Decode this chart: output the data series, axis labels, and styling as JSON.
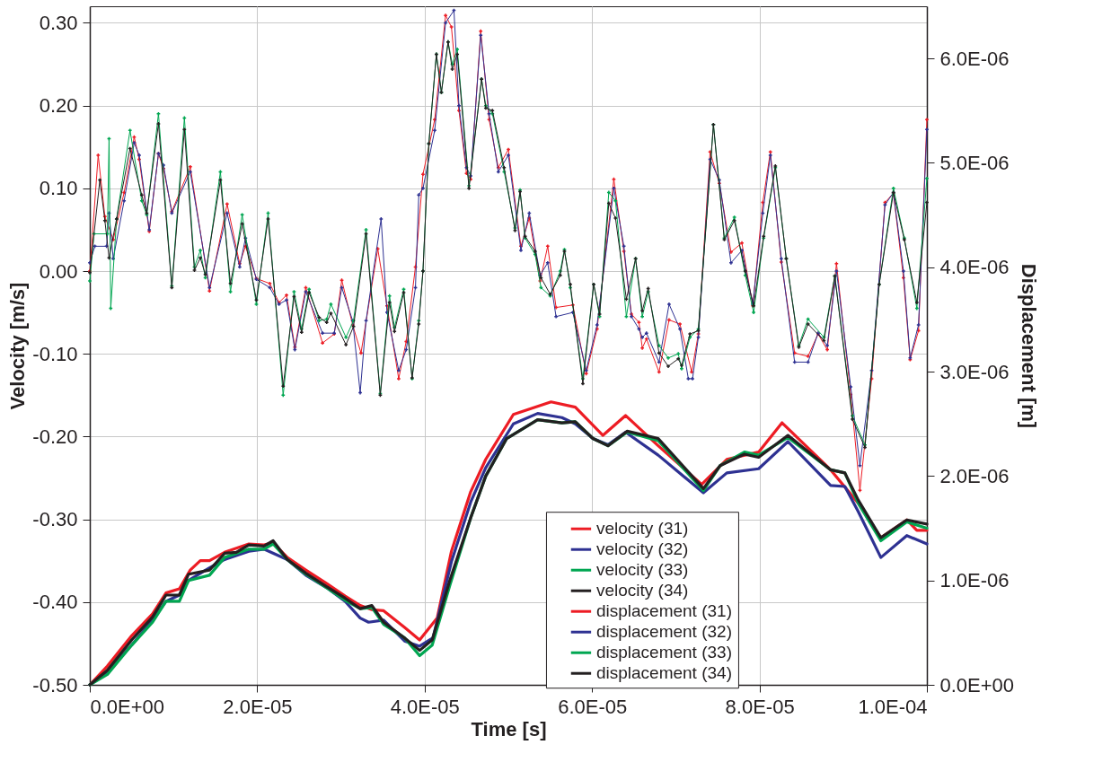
{
  "chart_data": {
    "type": "line",
    "xlabel": "Time  [s]",
    "ylabel": "Velocity  [m/s]",
    "y2label": "Displacement [m]",
    "xlim": [
      0,
      0.0001
    ],
    "ylim": [
      -0.5,
      0.32
    ],
    "y2lim": [
      0,
      6.5e-06
    ],
    "xticks": [
      {
        "value": 0,
        "label": "0.0E+00"
      },
      {
        "value": 2e-05,
        "label": "2.0E-05"
      },
      {
        "value": 4e-05,
        "label": "4.0E-05"
      },
      {
        "value": 6e-05,
        "label": "6.0E-05"
      },
      {
        "value": 8e-05,
        "label": "8.0E-05"
      },
      {
        "value": 0.0001,
        "label": "1.0E-04"
      }
    ],
    "yticks": [
      {
        "value": -0.5,
        "label": "-0.50"
      },
      {
        "value": -0.4,
        "label": "-0.40"
      },
      {
        "value": -0.3,
        "label": "-0.30"
      },
      {
        "value": -0.2,
        "label": "-0.20"
      },
      {
        "value": -0.1,
        "label": "-0.10"
      },
      {
        "value": 0,
        "label": "0.00"
      },
      {
        "value": 0.1,
        "label": "0.10"
      },
      {
        "value": 0.2,
        "label": "0.20"
      },
      {
        "value": 0.3,
        "label": "0.30"
      }
    ],
    "y2ticks": [
      {
        "value": 0,
        "label": "0.0E+00"
      },
      {
        "value": 1e-06,
        "label": "1.0E-06"
      },
      {
        "value": 2e-06,
        "label": "2.0E-06"
      },
      {
        "value": 3e-06,
        "label": "3.0E-06"
      },
      {
        "value": 4e-06,
        "label": "4.0E-06"
      },
      {
        "value": 5e-06,
        "label": "5.0E-06"
      },
      {
        "value": 6e-06,
        "label": "6.0E-06"
      }
    ],
    "grid": true,
    "legend": "bottom right",
    "marker": "cross",
    "series": [
      {
        "name": "velocity (31)",
        "color": "#ed1c24",
        "x": [
          0,
          1e-06,
          1.8e-06,
          2.8e-06,
          4.1e-06,
          5.3e-06,
          5.9e-06,
          7.1e-06,
          8.2e-06,
          8.8e-06,
          9.8e-06,
          1.2e-05,
          1.43e-05,
          1.64e-05,
          1.79e-05,
          1.86e-05,
          1.99e-05,
          2.15e-05,
          2.26e-05,
          2.35e-05,
          2.45e-05,
          2.58e-05,
          2.78e-05,
          2.92e-05,
          3.01e-05,
          3.14e-05,
          3.24e-05,
          3.44e-05,
          3.55e-05,
          3.69e-05,
          3.78e-05,
          3.89e-05,
          3.98e-05,
          4.12e-05,
          4.25e-05,
          4.32e-05,
          4.41e-05,
          4.5e-05,
          4.55e-05,
          4.67e-05,
          4.77e-05,
          4.88e-05,
          5e-05,
          5.15e-05,
          5.25e-05,
          5.38e-05,
          5.47e-05,
          5.57e-05,
          5.77e-05,
          5.93e-05,
          6.06e-05,
          6.26e-05,
          6.38e-05,
          6.47e-05,
          6.56e-05,
          6.6e-05,
          6.65e-05,
          6.8e-05,
          6.92e-05,
          7.05e-05,
          7.19e-05,
          7.27e-05,
          7.41e-05,
          7.52e-05,
          7.66e-05,
          7.79e-05,
          7.92e-05,
          8.04e-05,
          8.13e-05,
          8.26e-05,
          8.42e-05,
          8.58e-05,
          8.7e-05,
          8.81e-05,
          8.92e-05,
          9.09e-05,
          9.2e-05,
          9.34e-05,
          9.5e-05,
          9.6e-05,
          9.72e-05,
          9.8e-05,
          9.9e-05,
          0.0001
        ],
        "values": [
          0,
          0.14,
          0.066,
          0.038,
          0.095,
          0.162,
          0.135,
          0.048,
          0.142,
          0.124,
          0.072,
          0.126,
          -0.024,
          0.081,
          0.009,
          0.03,
          -0.009,
          -0.015,
          -0.038,
          -0.029,
          -0.092,
          -0.02,
          -0.087,
          -0.076,
          -0.011,
          -0.065,
          -0.099,
          0.027,
          -0.042,
          -0.13,
          -0.085,
          0.005,
          0.117,
          0.183,
          0.309,
          0.295,
          0.194,
          0.118,
          0.111,
          0.29,
          0.183,
          0.125,
          0.147,
          0.03,
          0.064,
          -0.012,
          0.03,
          -0.044,
          -0.041,
          -0.124,
          -0.07,
          0.111,
          0.024,
          -0.052,
          -0.062,
          -0.093,
          -0.082,
          -0.122,
          -0.059,
          -0.064,
          -0.122,
          -0.076,
          0.144,
          0.106,
          0.023,
          0.034,
          -0.042,
          0.083,
          0.144,
          0.011,
          -0.099,
          -0.103,
          -0.076,
          -0.095,
          0.009,
          -0.149,
          -0.265,
          -0.13,
          0.083,
          0.094,
          -0.008,
          -0.107,
          -0.072,
          0.183
        ]
      },
      {
        "name": "velocity (32)",
        "color": "#2e3192",
        "x": [
          0,
          6e-07,
          2e-06,
          2.3e-06,
          2.8e-06,
          4.1e-06,
          5.3e-06,
          5.9e-06,
          7.1e-06,
          8.2e-06,
          8.8e-06,
          9.8e-06,
          1.2e-05,
          1.43e-05,
          1.64e-05,
          1.79e-05,
          1.86e-05,
          1.99e-05,
          2.15e-05,
          2.26e-05,
          2.35e-05,
          2.45e-05,
          2.58e-05,
          2.78e-05,
          2.92e-05,
          3.01e-05,
          3.14e-05,
          3.23e-05,
          3.3e-05,
          3.48e-05,
          3.55e-05,
          3.69e-05,
          3.78e-05,
          3.89e-05,
          3.93e-05,
          3.98e-05,
          4.12e-05,
          4.25e-05,
          4.35e-05,
          4.41e-05,
          4.5e-05,
          4.55e-05,
          4.67e-05,
          4.77e-05,
          4.88e-05,
          5e-05,
          5.15e-05,
          5.25e-05,
          5.38e-05,
          5.47e-05,
          5.57e-05,
          5.77e-05,
          5.93e-05,
          6.06e-05,
          6.26e-05,
          6.38e-05,
          6.47e-05,
          6.56e-05,
          6.6e-05,
          6.65e-05,
          6.8e-05,
          6.92e-05,
          7.05e-05,
          7.15e-05,
          7.2e-05,
          7.27e-05,
          7.41e-05,
          7.52e-05,
          7.66e-05,
          7.79e-05,
          7.92e-05,
          8.04e-05,
          8.13e-05,
          8.26e-05,
          8.42e-05,
          8.58e-05,
          8.7e-05,
          8.81e-05,
          8.92e-05,
          9.09e-05,
          9.2e-05,
          9.34e-05,
          9.5e-05,
          9.6e-05,
          9.72e-05,
          9.8e-05,
          9.9e-05,
          0.0001
        ],
        "values": [
          0.01,
          0.03,
          0.03,
          0.07,
          0.015,
          0.085,
          0.155,
          0.14,
          0.05,
          0.142,
          0.128,
          0.07,
          0.12,
          -0.02,
          0.07,
          0.005,
          0.04,
          -0.01,
          -0.02,
          -0.04,
          -0.035,
          -0.095,
          -0.025,
          -0.075,
          -0.075,
          -0.02,
          -0.06,
          -0.147,
          -0.06,
          0.063,
          -0.05,
          -0.12,
          -0.095,
          -0.02,
          0.092,
          0.1,
          0.17,
          0.3,
          0.315,
          0.2,
          0.125,
          0.115,
          0.285,
          0.19,
          0.12,
          0.14,
          0.025,
          0.07,
          -0.005,
          0.01,
          -0.055,
          -0.05,
          -0.12,
          -0.065,
          0.1,
          0.03,
          -0.055,
          -0.07,
          -0.08,
          -0.075,
          -0.11,
          -0.04,
          -0.07,
          -0.13,
          -0.13,
          -0.08,
          0.135,
          0.11,
          0.01,
          0.025,
          -0.04,
          0.07,
          0.14,
          0.015,
          -0.11,
          -0.11,
          -0.075,
          -0.09,
          0,
          -0.14,
          -0.235,
          -0.12,
          0.08,
          0.095,
          0,
          -0.105,
          -0.065,
          0.171
        ]
      },
      {
        "name": "velocity (33)",
        "color": "#00a651",
        "x": [
          0,
          5e-07,
          2.1e-06,
          2.3e-06,
          2.5e-06,
          3.2e-06,
          4.8e-06,
          6.2e-06,
          6.8e-06,
          8.2e-06,
          9.8e-06,
          1.13e-05,
          1.25e-05,
          1.32e-05,
          1.38e-05,
          1.56e-05,
          1.68e-05,
          1.82e-05,
          1.99e-05,
          2.13e-05,
          2.31e-05,
          2.44e-05,
          2.53e-05,
          2.62e-05,
          2.74e-05,
          2.83e-05,
          2.88e-05,
          3.06e-05,
          3.15e-05,
          3.3e-05,
          3.47e-05,
          3.58e-05,
          3.64e-05,
          3.75e-05,
          3.85e-05,
          3.93e-05,
          3.98e-05,
          4.05e-05,
          4.14e-05,
          4.2e-05,
          4.28e-05,
          4.33e-05,
          4.39e-05,
          4.53e-05,
          4.68e-05,
          4.73e-05,
          4.81e-05,
          4.95e-05,
          5.08e-05,
          5.14e-05,
          5.2e-05,
          5.32e-05,
          5.39e-05,
          5.5e-05,
          5.62e-05,
          5.67e-05,
          5.74e-05,
          5.89e-05,
          6.02e-05,
          6.09e-05,
          6.2e-05,
          6.28e-05,
          6.41e-05,
          6.52e-05,
          6.6e-05,
          6.67e-05,
          6.8e-05,
          6.91e-05,
          7.03e-05,
          7.07e-05,
          7.17e-05,
          7.27e-05,
          7.45e-05,
          7.58e-05,
          7.7e-05,
          7.83e-05,
          7.93e-05,
          8.05e-05,
          8.19e-05,
          8.32e-05,
          8.47e-05,
          8.58e-05,
          8.77e-05,
          8.9e-05,
          9.11e-05,
          9.26e-05,
          9.43e-05,
          9.6e-05,
          9.73e-05,
          9.88e-05,
          0.0001
        ],
        "values": [
          -0.012,
          0.045,
          0.045,
          0.16,
          -0.045,
          0.063,
          0.17,
          0.085,
          0.068,
          0.19,
          -0.018,
          0.185,
          0.005,
          0.025,
          -0.008,
          0.12,
          -0.025,
          0.068,
          -0.04,
          0.07,
          -0.15,
          -0.025,
          -0.07,
          -0.022,
          -0.06,
          -0.058,
          -0.04,
          -0.08,
          -0.06,
          0.05,
          -0.148,
          -0.03,
          -0.068,
          -0.022,
          -0.13,
          -0.06,
          0,
          0.154,
          0.262,
          0.216,
          0.277,
          0.25,
          0.268,
          0.103,
          0.232,
          0.2,
          0.19,
          0.12,
          0.052,
          0.098,
          0.04,
          0.02,
          -0.02,
          -0.03,
          0,
          0.026,
          -0.02,
          -0.13,
          -0.016,
          -0.055,
          0.095,
          0.085,
          -0.055,
          0.015,
          -0.055,
          -0.025,
          -0.09,
          -0.105,
          -0.1,
          -0.118,
          -0.08,
          -0.07,
          0.177,
          0.04,
          0.065,
          -0.005,
          -0.05,
          0.04,
          0.125,
          0.015,
          -0.09,
          -0.058,
          -0.08,
          -0.006,
          -0.175,
          -0.21,
          -0.016,
          0.1,
          0.04,
          -0.045,
          0.112
        ]
      },
      {
        "name": "velocity (34)",
        "color": "#231f20",
        "x": [
          0,
          1.2e-06,
          1.8e-06,
          2.3e-06,
          3.2e-06,
          4.8e-06,
          6.2e-06,
          6.8e-06,
          8.2e-06,
          9.8e-06,
          1.13e-05,
          1.25e-05,
          1.32e-05,
          1.38e-05,
          1.56e-05,
          1.68e-05,
          1.82e-05,
          1.99e-05,
          2.13e-05,
          2.31e-05,
          2.44e-05,
          2.53e-05,
          2.62e-05,
          2.74e-05,
          2.83e-05,
          2.88e-05,
          3.06e-05,
          3.15e-05,
          3.3e-05,
          3.47e-05,
          3.58e-05,
          3.64e-05,
          3.75e-05,
          3.85e-05,
          3.93e-05,
          3.98e-05,
          4.05e-05,
          4.14e-05,
          4.2e-05,
          4.28e-05,
          4.33e-05,
          4.39e-05,
          4.53e-05,
          4.68e-05,
          4.73e-05,
          4.81e-05,
          4.95e-05,
          5.08e-05,
          5.14e-05,
          5.2e-05,
          5.32e-05,
          5.39e-05,
          5.5e-05,
          5.62e-05,
          5.67e-05,
          5.74e-05,
          5.89e-05,
          6.02e-05,
          6.09e-05,
          6.2e-05,
          6.28e-05,
          6.41e-05,
          6.52e-05,
          6.6e-05,
          6.67e-05,
          6.8e-05,
          6.91e-05,
          7.03e-05,
          7.07e-05,
          7.17e-05,
          7.27e-05,
          7.45e-05,
          7.58e-05,
          7.7e-05,
          7.83e-05,
          7.93e-05,
          8.05e-05,
          8.19e-05,
          8.32e-05,
          8.47e-05,
          8.58e-05,
          8.77e-05,
          8.9e-05,
          9.11e-05,
          9.26e-05,
          9.43e-05,
          9.6e-05,
          9.73e-05,
          9.88e-05,
          0.0001
        ],
        "values": [
          -0.002,
          0.11,
          0.061,
          0.016,
          0.063,
          0.148,
          0.092,
          0.07,
          0.178,
          -0.02,
          0.171,
          0.001,
          0.016,
          -0.004,
          0.11,
          -0.015,
          0.057,
          -0.035,
          0.063,
          -0.139,
          -0.031,
          -0.074,
          -0.026,
          -0.056,
          -0.062,
          -0.051,
          -0.089,
          -0.067,
          0.045,
          -0.15,
          -0.038,
          -0.073,
          -0.026,
          -0.129,
          -0.064,
          0,
          0.154,
          0.262,
          0.216,
          0.277,
          0.244,
          0.262,
          0.1,
          0.232,
          0.197,
          0.194,
          0.125,
          0.049,
          0.096,
          0.042,
          0.024,
          -0.008,
          -0.028,
          -0.005,
          0.024,
          -0.016,
          -0.136,
          -0.016,
          -0.052,
          0.082,
          0.064,
          -0.034,
          0.015,
          -0.048,
          -0.021,
          -0.099,
          -0.115,
          -0.106,
          -0.114,
          -0.076,
          -0.072,
          0.177,
          0.038,
          0.061,
          0,
          -0.042,
          0.042,
          0.127,
          0.015,
          -0.092,
          -0.064,
          -0.084,
          -0.006,
          -0.179,
          -0.213,
          -0.016,
          0.095,
          0.038,
          -0.038,
          0.083
        ]
      },
      {
        "name": "displacement (31)",
        "color": "#ed1c24",
        "axis": "y2",
        "marker": "none",
        "x": [
          0,
          2.1e-06,
          5e-06,
          7.5e-06,
          9.1e-06,
          1.07e-05,
          1.2e-05,
          1.32e-05,
          1.43e-05,
          1.61e-05,
          1.9e-05,
          2.08e-05,
          2.19e-05,
          2.36e-05,
          2.58e-05,
          2.83e-05,
          3.05e-05,
          3.23e-05,
          3.37e-05,
          3.51e-05,
          3.76e-05,
          3.94e-05,
          4.15e-05,
          4.32e-05,
          4.55e-05,
          4.73e-05,
          5.06e-05,
          5.51e-05,
          5.8e-05,
          6.13e-05,
          6.4e-05,
          6.79e-05,
          7.31e-05,
          7.61e-05,
          7.99e-05,
          8.27e-05,
          8.85e-05,
          9.18e-05,
          9.45e-05,
          9.76e-05,
          9.88e-05,
          0.0001
        ],
        "values": [
          0,
          1.8e-07,
          4.7e-07,
          6.8e-07,
          8.8e-07,
          9.2e-07,
          1.1e-06,
          1.19e-06,
          1.19e-06,
          1.27e-06,
          1.35e-06,
          1.34e-06,
          1.36e-06,
          1.22e-06,
          1.1e-06,
          9.7e-07,
          8.5e-07,
          7.6e-07,
          7.2e-07,
          7.1e-07,
          5.5e-07,
          4.3e-07,
          6.4e-07,
          1.28e-06,
          1.85e-06,
          2.16e-06,
          2.59e-06,
          2.71e-06,
          2.66e-06,
          2.39e-06,
          2.58e-06,
          2.29e-06,
          1.92e-06,
          2.16e-06,
          2.23e-06,
          2.51e-06,
          2.06e-06,
          1.74e-06,
          1.41e-06,
          1.58e-06,
          1.48e-06,
          1.48e-06
        ]
      },
      {
        "name": "displacement (32)",
        "color": "#2e3192",
        "axis": "y2",
        "marker": "none",
        "x": [
          0,
          2.1e-06,
          5e-06,
          7.5e-06,
          9.1e-06,
          1.07e-05,
          1.18e-05,
          1.43e-05,
          1.61e-05,
          1.9e-05,
          2.08e-05,
          2.36e-05,
          2.58e-05,
          2.83e-05,
          3.05e-05,
          3.23e-05,
          3.33e-05,
          3.51e-05,
          3.76e-05,
          3.94e-05,
          4.1e-05,
          4.32e-05,
          4.55e-05,
          4.73e-05,
          5.06e-05,
          5.35e-05,
          5.64e-05,
          5.8e-05,
          6.01e-05,
          6.19e-05,
          6.4e-05,
          6.79e-05,
          7.33e-05,
          7.61e-05,
          7.99e-05,
          8.34e-05,
          8.85e-05,
          9.02e-05,
          9.18e-05,
          9.45e-05,
          9.76e-05,
          0.0001
        ],
        "values": [
          0,
          1.2e-07,
          3.8e-07,
          6.2e-07,
          8e-07,
          8.6e-07,
          1e-06,
          1.12e-06,
          1.2e-06,
          1.28e-06,
          1.3e-06,
          1.2e-06,
          1.05e-06,
          9.3e-07,
          8e-07,
          6.4e-07,
          6e-07,
          6.2e-07,
          4.2e-07,
          3.7e-07,
          4.5e-07,
          1.18e-06,
          1.75e-06,
          2.08e-06,
          2.5e-06,
          2.6e-06,
          2.56e-06,
          2.5e-06,
          2.36e-06,
          2.3e-06,
          2.42e-06,
          2.2e-06,
          1.84e-06,
          2.03e-06,
          2.07e-06,
          2.33e-06,
          1.91e-06,
          1.9e-06,
          1.66e-06,
          1.22e-06,
          1.43e-06,
          1.35e-06
        ]
      },
      {
        "name": "displacement (33)",
        "color": "#00a651",
        "axis": "y2",
        "marker": "none",
        "x": [
          0,
          2.1e-06,
          5e-06,
          7.5e-06,
          9.1e-06,
          1.07e-05,
          1.18e-05,
          1.43e-05,
          1.61e-05,
          1.9e-05,
          2.08e-05,
          2.19e-05,
          2.36e-05,
          2.58e-05,
          2.83e-05,
          3.05e-05,
          3.23e-05,
          3.37e-05,
          3.51e-05,
          3.76e-05,
          3.94e-05,
          4.09e-05,
          4.3e-05,
          4.55e-05,
          4.73e-05,
          4.98e-05,
          5.35e-05,
          5.64e-05,
          5.8e-05,
          6.01e-05,
          6.19e-05,
          6.42e-05,
          6.79e-05,
          7.33e-05,
          7.53e-05,
          7.82e-05,
          7.99e-05,
          8.34e-05,
          8.85e-05,
          9.02e-05,
          9.18e-05,
          9.45e-05,
          9.76e-05,
          0.0001
        ],
        "values": [
          0,
          1e-07,
          3.8e-07,
          6e-07,
          8e-07,
          8e-07,
          1e-06,
          1.05e-06,
          1.22e-06,
          1.3e-06,
          1.3e-06,
          1.35e-06,
          1.2e-06,
          1.06e-06,
          9.3e-07,
          8.1e-07,
          7.3e-07,
          7.4e-07,
          5.8e-07,
          4.5e-07,
          2.8e-07,
          3.8e-07,
          9.5e-07,
          1.6e-06,
          2e-06,
          2.36e-06,
          2.54e-06,
          2.51e-06,
          2.52e-06,
          2.36e-06,
          2.29e-06,
          2.42e-06,
          2.34e-06,
          1.86e-06,
          2.1e-06,
          2.23e-06,
          2.2e-06,
          2.37e-06,
          2.06e-06,
          2.03e-06,
          1.74e-06,
          1.38e-06,
          1.56e-06,
          1.5e-06
        ]
      },
      {
        "name": "displacement (34)",
        "color": "#231f20",
        "axis": "y2",
        "marker": "none",
        "x": [
          0,
          2.1e-06,
          5e-06,
          7.5e-06,
          9.1e-06,
          1.07e-05,
          1.18e-05,
          1.43e-05,
          1.61e-05,
          1.75e-05,
          1.9e-05,
          2.08e-05,
          2.19e-05,
          2.36e-05,
          2.58e-05,
          2.83e-05,
          3.05e-05,
          3.23e-05,
          3.37e-05,
          3.51e-05,
          3.76e-05,
          3.94e-05,
          4.09e-05,
          4.3e-05,
          4.55e-05,
          4.73e-05,
          4.98e-05,
          5.35e-05,
          5.64e-05,
          5.8e-05,
          6.01e-05,
          6.19e-05,
          6.42e-05,
          6.79e-05,
          7.33e-05,
          7.53e-05,
          7.82e-05,
          7.99e-05,
          8.34e-05,
          8.85e-05,
          9.02e-05,
          9.18e-05,
          9.45e-05,
          9.76e-05,
          0.0001
        ],
        "values": [
          0,
          1.4e-07,
          4.3e-07,
          6.5e-07,
          8.6e-07,
          8.6e-07,
          1.06e-06,
          1.1e-06,
          1.26e-06,
          1.27e-06,
          1.34e-06,
          1.33e-06,
          1.38e-06,
          1.2e-06,
          1.07e-06,
          9.4e-07,
          8.3e-07,
          7.3e-07,
          7.6e-07,
          6e-07,
          4.5e-07,
          3.3e-07,
          4.3e-07,
          1e-06,
          1.6e-06,
          2e-06,
          2.36e-06,
          2.54e-06,
          2.51e-06,
          2.52e-06,
          2.36e-06,
          2.29e-06,
          2.43e-06,
          2.36e-06,
          1.88e-06,
          2.1e-06,
          2.21e-06,
          2.18e-06,
          2.39e-06,
          2.06e-06,
          2.03e-06,
          1.77e-06,
          1.41e-06,
          1.58e-06,
          1.54e-06
        ]
      }
    ]
  }
}
